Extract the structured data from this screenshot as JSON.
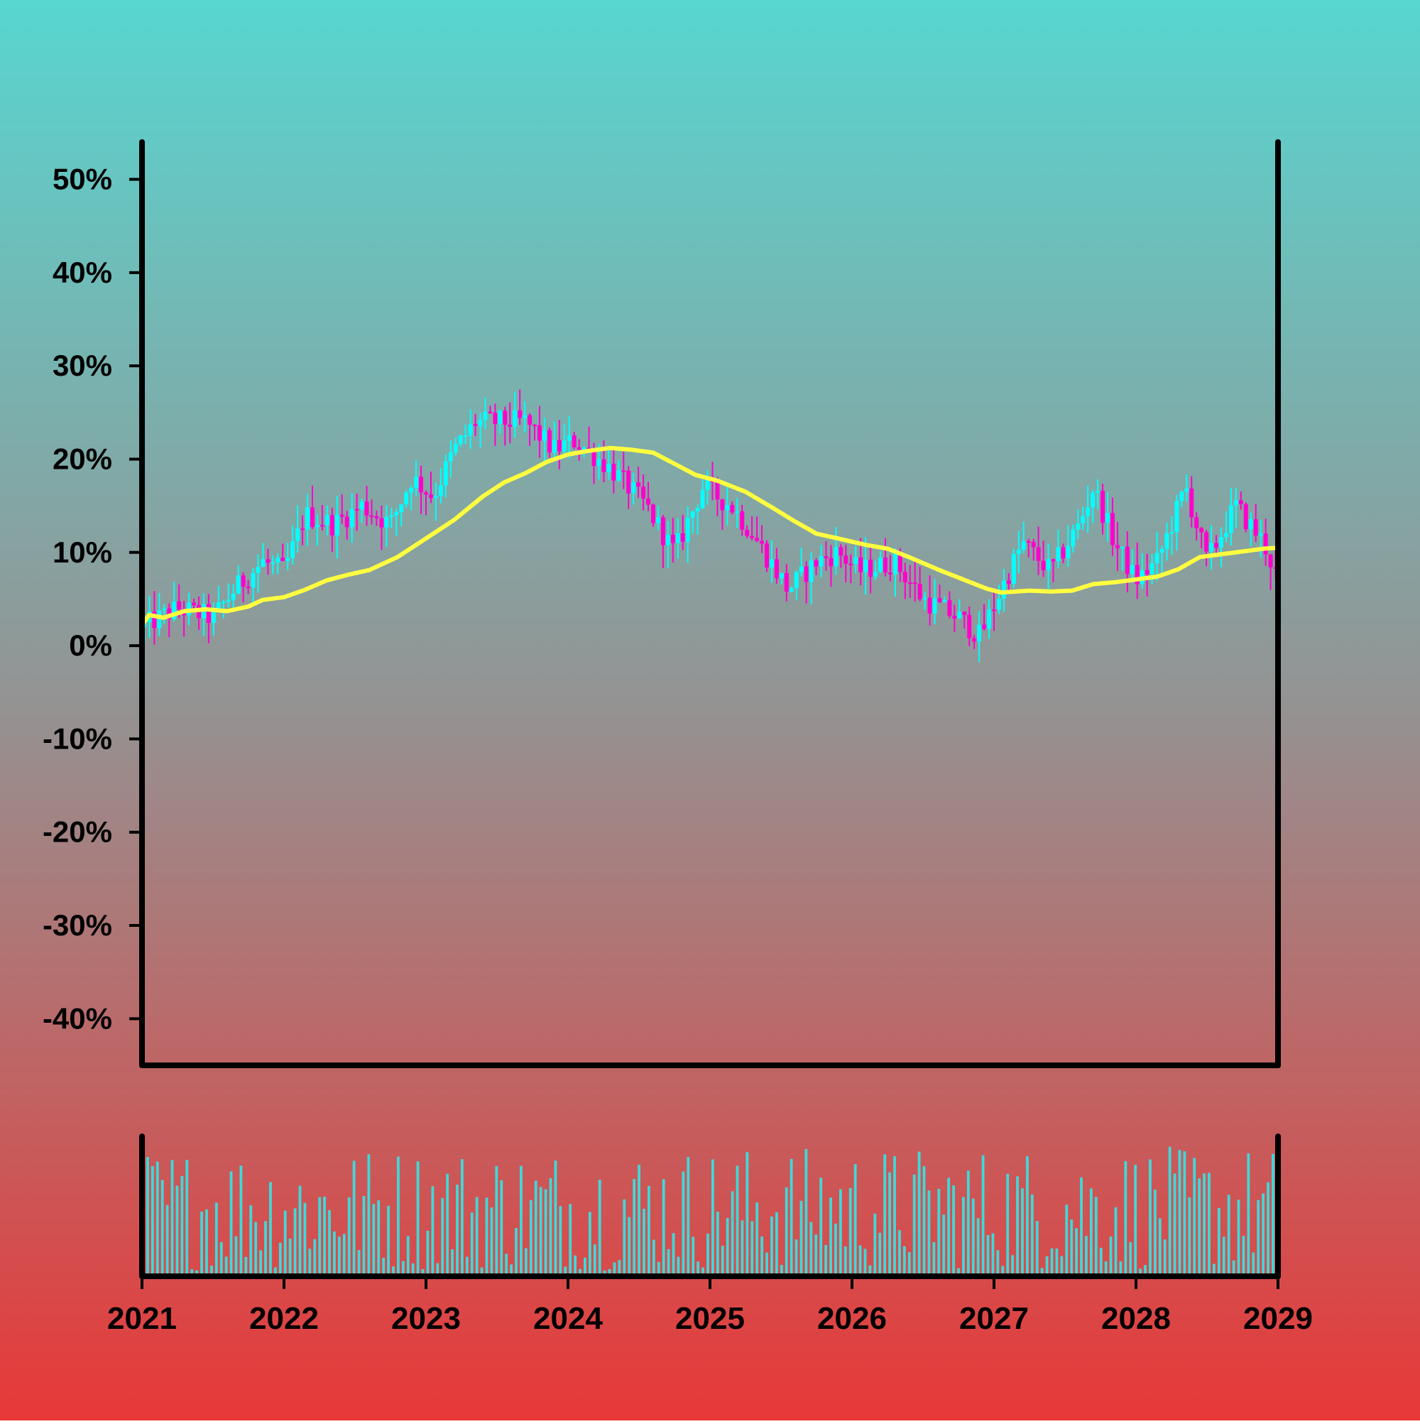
{
  "chart_data": {
    "type": "candlestick",
    "title": "",
    "xlabel": "",
    "ylabel": "",
    "xlim": [
      2021,
      2029
    ],
    "ylim": [
      -45,
      54
    ],
    "y_ticks": [
      {
        "value": 50,
        "label": "50%"
      },
      {
        "value": 40,
        "label": "40%"
      },
      {
        "value": 30,
        "label": "30%"
      },
      {
        "value": 20,
        "label": "20%"
      },
      {
        "value": 10,
        "label": "10%"
      },
      {
        "value": 0,
        "label": "0%"
      },
      {
        "value": -10,
        "label": "-10%"
      },
      {
        "value": -20,
        "label": "-20%"
      },
      {
        "value": -30,
        "label": "-30%"
      },
      {
        "value": -40,
        "label": "-40%"
      }
    ],
    "x_ticks": [
      {
        "value": 2021,
        "label": "2021"
      },
      {
        "value": 2022,
        "label": "2022"
      },
      {
        "value": 2023,
        "label": "2023"
      },
      {
        "value": 2024,
        "label": "2024"
      },
      {
        "value": 2025,
        "label": "2025"
      },
      {
        "value": 2026,
        "label": "2026"
      },
      {
        "value": 2027,
        "label": "2027"
      },
      {
        "value": 2028,
        "label": "2028"
      },
      {
        "value": 2029,
        "label": "2029"
      }
    ],
    "price_path": [
      [
        2021.0,
        2
      ],
      [
        2021.25,
        4
      ],
      [
        2021.5,
        3
      ],
      [
        2021.65,
        6
      ],
      [
        2021.85,
        9
      ],
      [
        2022.0,
        8
      ],
      [
        2022.15,
        14
      ],
      [
        2022.35,
        13
      ],
      [
        2022.55,
        15
      ],
      [
        2022.75,
        13
      ],
      [
        2022.9,
        18
      ],
      [
        2023.05,
        16
      ],
      [
        2023.2,
        21
      ],
      [
        2023.35,
        24
      ],
      [
        2023.5,
        24
      ],
      [
        2023.7,
        24
      ],
      [
        2023.9,
        21
      ],
      [
        2024.05,
        22
      ],
      [
        2024.3,
        19
      ],
      [
        2024.55,
        15
      ],
      [
        2024.75,
        10
      ],
      [
        2024.95,
        17
      ],
      [
        2025.15,
        15
      ],
      [
        2025.3,
        12
      ],
      [
        2025.55,
        6
      ],
      [
        2025.75,
        9
      ],
      [
        2025.9,
        10
      ],
      [
        2026.05,
        8
      ],
      [
        2026.3,
        9
      ],
      [
        2026.5,
        5
      ],
      [
        2026.75,
        3
      ],
      [
        2026.9,
        1
      ],
      [
        2027.05,
        6
      ],
      [
        2027.2,
        11
      ],
      [
        2027.4,
        8
      ],
      [
        2027.6,
        13
      ],
      [
        2027.7,
        17
      ],
      [
        2027.85,
        11
      ],
      [
        2028.0,
        7
      ],
      [
        2028.15,
        9
      ],
      [
        2028.35,
        17
      ],
      [
        2028.5,
        9
      ],
      [
        2028.7,
        15
      ],
      [
        2028.9,
        11
      ],
      [
        2029.0,
        7
      ]
    ],
    "moving_average": [
      [
        2021.0,
        2.2
      ],
      [
        2021.05,
        3.3
      ],
      [
        2021.15,
        3.0
      ],
      [
        2021.3,
        3.7
      ],
      [
        2021.45,
        3.9
      ],
      [
        2021.6,
        3.7
      ],
      [
        2021.75,
        4.2
      ],
      [
        2021.85,
        4.9
      ],
      [
        2022.0,
        5.2
      ],
      [
        2022.15,
        6.0
      ],
      [
        2022.3,
        7.0
      ],
      [
        2022.45,
        7.6
      ],
      [
        2022.6,
        8.1
      ],
      [
        2022.8,
        9.5
      ],
      [
        2023.0,
        11.5
      ],
      [
        2023.2,
        13.5
      ],
      [
        2023.4,
        16.0
      ],
      [
        2023.55,
        17.5
      ],
      [
        2023.7,
        18.5
      ],
      [
        2023.85,
        19.7
      ],
      [
        2024.0,
        20.5
      ],
      [
        2024.15,
        20.9
      ],
      [
        2024.3,
        21.2
      ],
      [
        2024.45,
        21.0
      ],
      [
        2024.6,
        20.7
      ],
      [
        2024.75,
        19.5
      ],
      [
        2024.9,
        18.3
      ],
      [
        2025.05,
        17.7
      ],
      [
        2025.25,
        16.5
      ],
      [
        2025.45,
        14.7
      ],
      [
        2025.6,
        13.3
      ],
      [
        2025.75,
        12.0
      ],
      [
        2025.9,
        11.5
      ],
      [
        2026.1,
        10.8
      ],
      [
        2026.25,
        10.4
      ],
      [
        2026.4,
        9.5
      ],
      [
        2026.6,
        8.2
      ],
      [
        2026.8,
        7.0
      ],
      [
        2026.95,
        6.1
      ],
      [
        2027.05,
        5.7
      ],
      [
        2027.25,
        5.9
      ],
      [
        2027.4,
        5.8
      ],
      [
        2027.55,
        5.9
      ],
      [
        2027.7,
        6.6
      ],
      [
        2027.85,
        6.8
      ],
      [
        2028.0,
        7.1
      ],
      [
        2028.15,
        7.4
      ],
      [
        2028.3,
        8.2
      ],
      [
        2028.45,
        9.5
      ],
      [
        2028.6,
        9.8
      ],
      [
        2028.75,
        10.1
      ],
      [
        2028.9,
        10.4
      ],
      [
        2029.0,
        10.5
      ]
    ],
    "moving_average_color": "#ffff40",
    "up_color": "#00ffff",
    "down_color": "#ff00cc",
    "volume_color": "#40d8d8",
    "volume_bars": 230,
    "legend": "none",
    "grid": false
  },
  "colors": {
    "bg_top": "#58d6d0",
    "bg_mid": "#959292",
    "bg_bottom": "#e83838",
    "axis": "#000000",
    "text": "#000000"
  }
}
